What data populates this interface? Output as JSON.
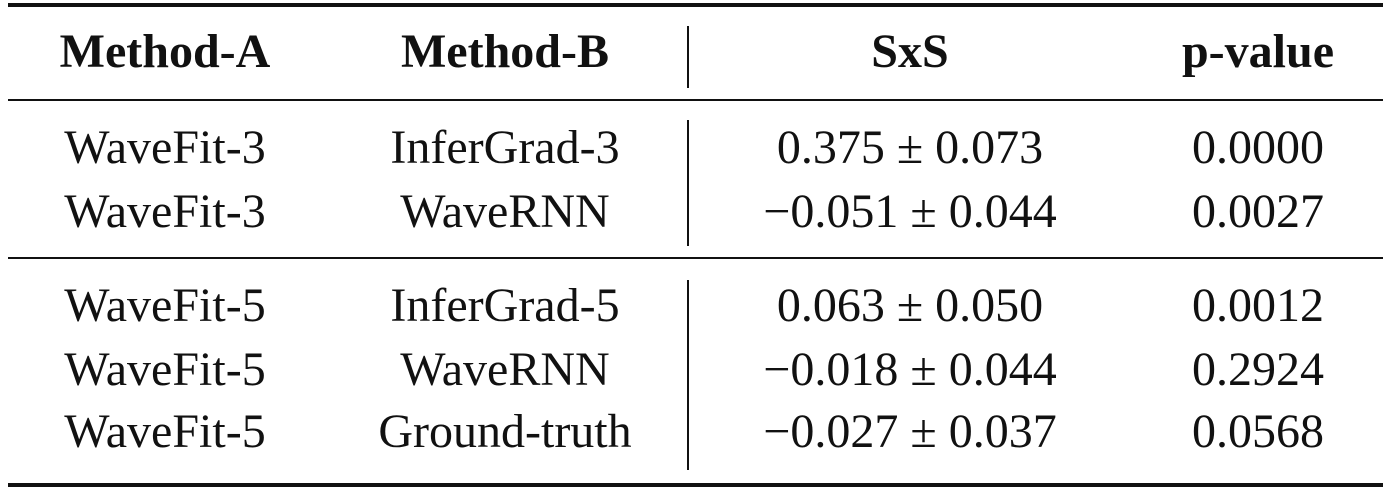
{
  "table": {
    "header": [
      "Method-A",
      "Method-B",
      "SxS",
      "p-value"
    ],
    "groups": [
      [
        [
          "WaveFit-3",
          "InferGrad-3",
          "0.375 ± 0.073",
          "0.0000"
        ],
        [
          "WaveFit-3",
          "WaveRNN",
          "−0.051 ± 0.044",
          "0.0027"
        ]
      ],
      [
        [
          "WaveFit-5",
          "InferGrad-5",
          "0.063 ± 0.050",
          "0.0012"
        ],
        [
          "WaveFit-5",
          "WaveRNN",
          "−0.018 ± 0.044",
          "0.2924"
        ],
        [
          "WaveFit-5",
          "Ground-truth",
          "−0.027 ± 0.037",
          "0.0568"
        ]
      ]
    ]
  }
}
